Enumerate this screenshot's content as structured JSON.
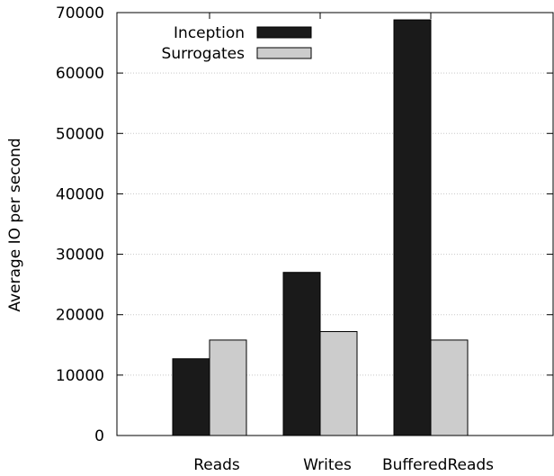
{
  "chart_data": {
    "type": "bar",
    "title": "",
    "xlabel": "",
    "ylabel": "Average IO per second",
    "categories": [
      "Reads",
      "Writes",
      "BufferedReads"
    ],
    "series": [
      {
        "name": "Inception",
        "values": [
          12700,
          27000,
          68800
        ],
        "color": "#1a1a1a"
      },
      {
        "name": "Surrogates",
        "values": [
          15800,
          17200,
          15800
        ],
        "color": "#cccccc"
      }
    ],
    "ylim": [
      0,
      70000
    ],
    "yticks": [
      0,
      10000,
      20000,
      30000,
      40000,
      50000,
      60000,
      70000
    ],
    "grid": true,
    "legend_position": "top-left"
  }
}
